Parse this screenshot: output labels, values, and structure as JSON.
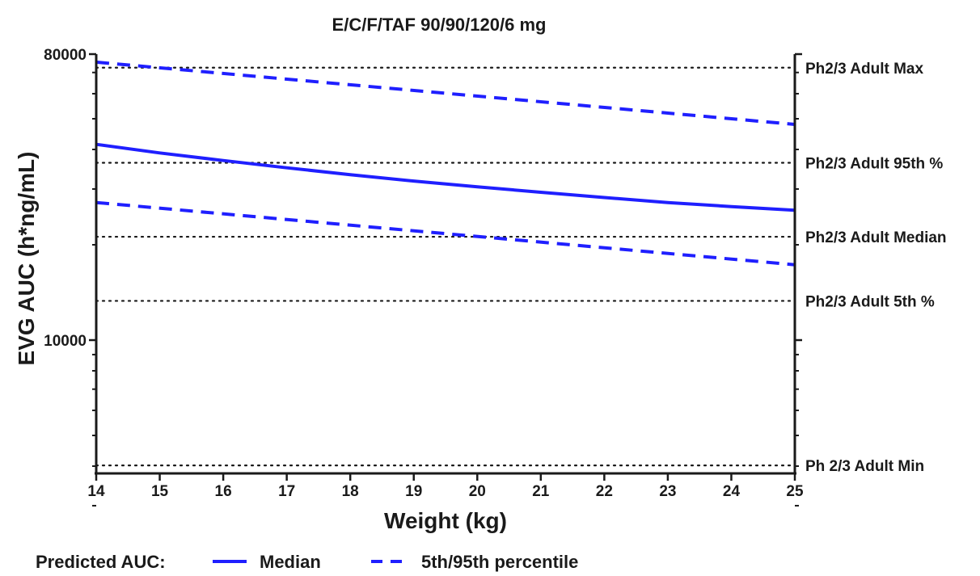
{
  "chart_data": {
    "type": "line",
    "title": "E/C/F/TAF 90/90/120/6 mg",
    "xlabel": "Weight (kg)",
    "ylabel": "EVG AUC (h*ng/mL)",
    "xlim": [
      14,
      25
    ],
    "ylim": [
      2600,
      80000
    ],
    "yscale": "log",
    "x_ticks": [
      14,
      15,
      16,
      17,
      18,
      19,
      20,
      21,
      22,
      23,
      24,
      25
    ],
    "y_ticks": [
      {
        "value": 80000,
        "label": "80000"
      },
      {
        "value": 10000,
        "label": "10000"
      }
    ],
    "series": [
      {
        "name": "Median",
        "style": "solid",
        "color": "#1f1fff",
        "x": [
          14,
          15,
          16,
          17,
          18,
          19,
          20,
          21,
          22,
          23,
          24,
          25
        ],
        "y": [
          41500,
          39000,
          36900,
          35000,
          33300,
          31800,
          30500,
          29300,
          28200,
          27200,
          26400,
          25700
        ]
      },
      {
        "name": "95th percentile",
        "style": "dashed",
        "color": "#1f1fff",
        "x": [
          14,
          25
        ],
        "y": [
          75500,
          48000
        ]
      },
      {
        "name": "5th percentile",
        "style": "dashed",
        "color": "#1f1fff",
        "x": [
          14,
          25
        ],
        "y": [
          27200,
          17300
        ]
      }
    ],
    "reference_lines": [
      {
        "label": "Ph2/3 Adult Max",
        "value": 72500
      },
      {
        "label": "Ph2/3 Adult 95th %",
        "value": 36300
      },
      {
        "label": "Ph2/3 Adult Median",
        "value": 21200
      },
      {
        "label": "Ph2/3 Adult 5th %",
        "value": 13300
      },
      {
        "label": "Ph 2/3 Adult Min",
        "value": 4020
      }
    ],
    "legend": {
      "title": "Predicted AUC:",
      "items": [
        {
          "label": "Median",
          "style": "solid"
        },
        {
          "label": "5th/95th percentile",
          "style": "dashed"
        }
      ],
      "position": "bottom"
    },
    "grid": false
  }
}
